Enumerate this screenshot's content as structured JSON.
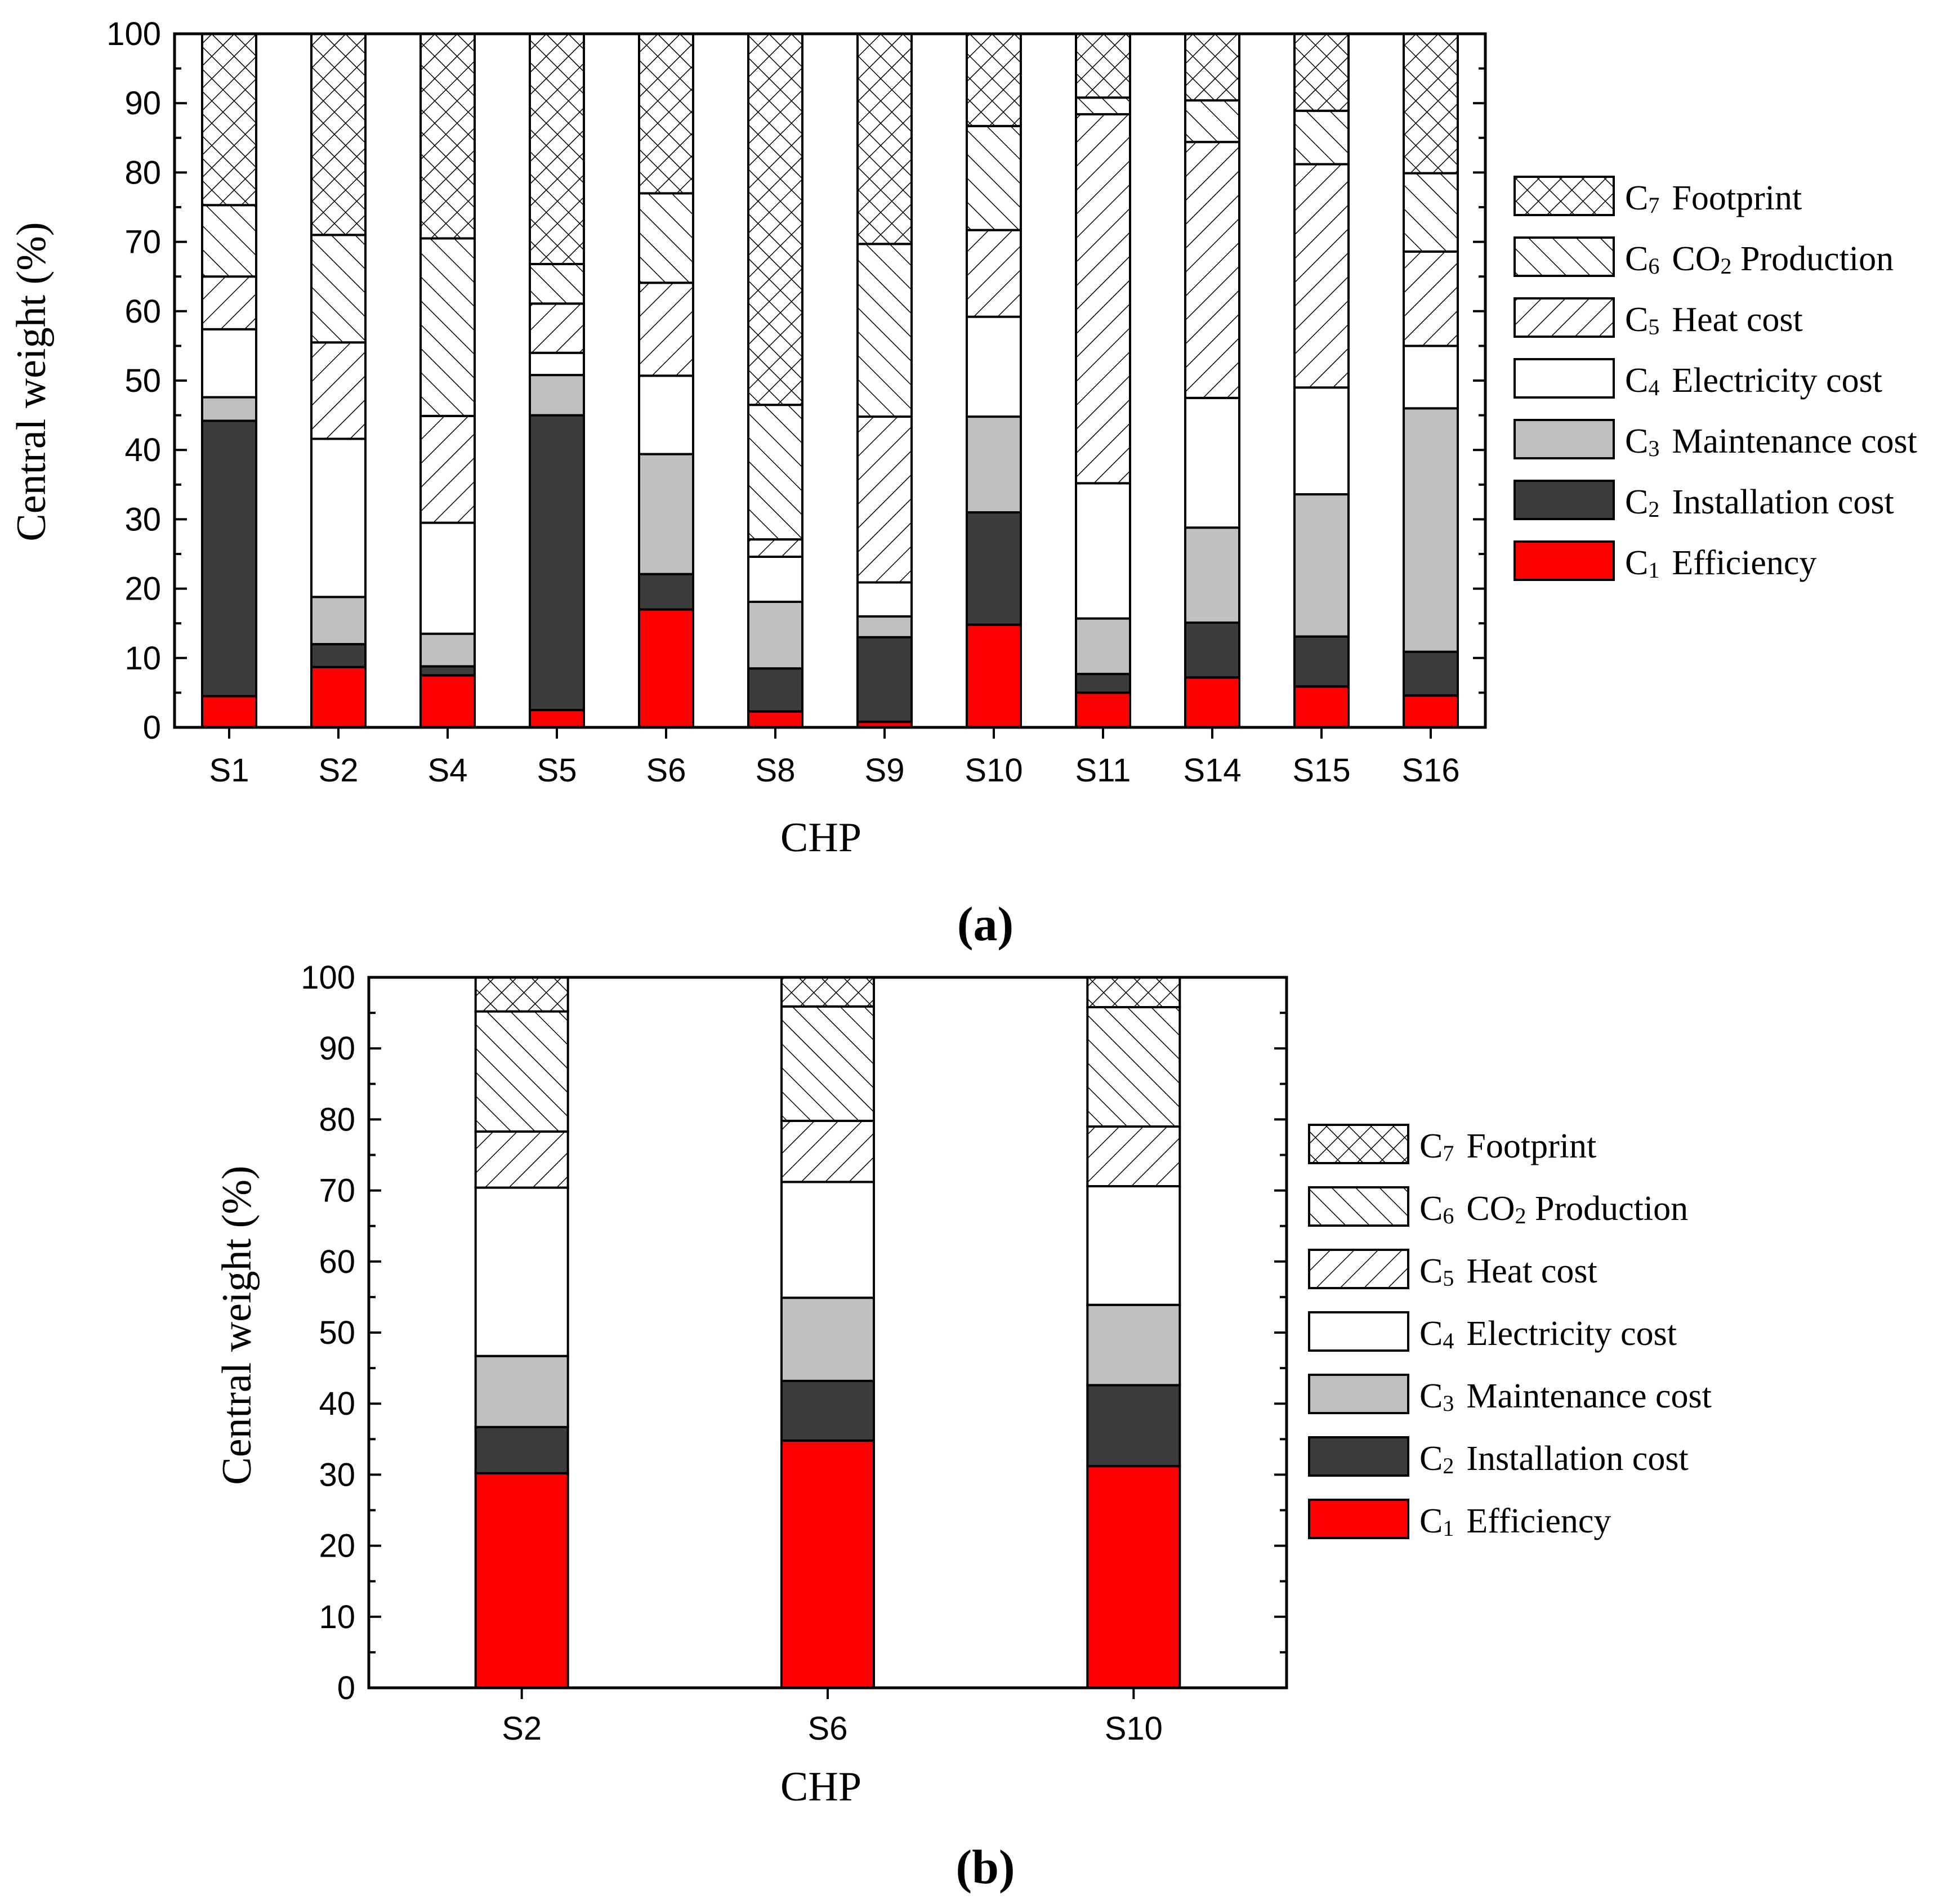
{
  "figure": {
    "panels": [
      {
        "id": "a",
        "label_open": "(",
        "label_letter": "a",
        "label_close": ")"
      },
      {
        "id": "b",
        "label_open": "(",
        "label_letter": "b",
        "label_close": ")"
      }
    ]
  },
  "legend": [
    {
      "key": "C7",
      "letter": "C",
      "sub": "7",
      "name": "Footprint",
      "fill": "crosshatch"
    },
    {
      "key": "C6",
      "letter": "C",
      "sub": "6",
      "name_parts": [
        "CO",
        "2",
        " Production"
      ],
      "fill": "diag-back"
    },
    {
      "key": "C5",
      "letter": "C",
      "sub": "5",
      "name": "Heat cost",
      "fill": "diag-fwd"
    },
    {
      "key": "C4",
      "letter": "C",
      "sub": "4",
      "name": "Electricity cost",
      "fill": "#ffffff"
    },
    {
      "key": "C3",
      "letter": "C",
      "sub": "3",
      "name": "Maintenance cost",
      "fill": "#c0c0c0"
    },
    {
      "key": "C2",
      "letter": "C",
      "sub": "2",
      "name": "Installation cost",
      "fill": "#3c3c3c"
    },
    {
      "key": "C1",
      "letter": "C",
      "sub": "1",
      "name": "Efficiency",
      "fill": "#ff0000"
    }
  ],
  "colors": {
    "efficiency": "#ff0000",
    "installation": "#3c3c3c",
    "maintenance": "#c0c0c0",
    "electricity": "#ffffff",
    "axis": "#000000"
  },
  "chart_data": [
    {
      "type": "bar",
      "stacked": true,
      "panel": "a",
      "title": "",
      "xlabel": "CHP",
      "ylabel": "Central weight (%)",
      "ylim": [
        0,
        100
      ],
      "yticks": [
        0,
        10,
        20,
        30,
        40,
        50,
        60,
        70,
        80,
        90,
        100
      ],
      "categories": [
        "S1",
        "S2",
        "S4",
        "S5",
        "S6",
        "S8",
        "S9",
        "S10",
        "S11",
        "S14",
        "S15",
        "S16"
      ],
      "series": [
        {
          "name": "C1 Efficiency",
          "values": [
            4.5,
            8.7,
            7.5,
            2.5,
            17.0,
            2.3,
            0.8,
            14.8,
            5.0,
            7.2,
            5.9,
            4.6
          ]
        },
        {
          "name": "C2 Installation cost",
          "values": [
            39.7,
            3.3,
            1.3,
            42.5,
            5.1,
            6.2,
            12.2,
            16.2,
            2.7,
            7.9,
            7.2,
            6.3
          ]
        },
        {
          "name": "C3 Maintenance cost",
          "values": [
            3.4,
            6.8,
            4.7,
            5.8,
            17.3,
            9.6,
            3.0,
            13.8,
            8.0,
            13.7,
            20.5,
            35.1
          ]
        },
        {
          "name": "C4 Electricity cost",
          "values": [
            9.8,
            22.8,
            16.0,
            3.2,
            11.3,
            6.5,
            4.9,
            14.4,
            19.5,
            18.7,
            15.4,
            9.0
          ]
        },
        {
          "name": "C5 Heat cost",
          "values": [
            7.6,
            13.9,
            15.4,
            7.1,
            13.4,
            2.5,
            23.9,
            12.5,
            53.2,
            36.9,
            32.2,
            13.6
          ]
        },
        {
          "name": "C6 CO2 Production",
          "values": [
            10.3,
            15.5,
            25.6,
            5.7,
            12.9,
            19.4,
            24.9,
            15.0,
            2.4,
            6.0,
            7.7,
            11.3
          ]
        },
        {
          "name": "C7 Footprint",
          "values": [
            24.7,
            29.0,
            29.5,
            33.2,
            23.0,
            53.5,
            30.3,
            13.3,
            9.2,
            9.6,
            11.1,
            20.1
          ]
        }
      ]
    },
    {
      "type": "bar",
      "stacked": true,
      "panel": "b",
      "title": "",
      "xlabel": "CHP",
      "ylabel": "Central weight (%)",
      "ylim": [
        0,
        100
      ],
      "yticks": [
        0,
        10,
        20,
        30,
        40,
        50,
        60,
        70,
        80,
        90,
        100
      ],
      "categories": [
        "S2",
        "S6",
        "S10"
      ],
      "series": [
        {
          "name": "C1 Efficiency",
          "values": [
            30.2,
            34.8,
            31.2
          ]
        },
        {
          "name": "C2 Installation cost",
          "values": [
            6.5,
            8.4,
            11.4
          ]
        },
        {
          "name": "C3 Maintenance cost",
          "values": [
            10.0,
            11.7,
            11.3
          ]
        },
        {
          "name": "C4 Electricity cost",
          "values": [
            23.7,
            16.3,
            16.7
          ]
        },
        {
          "name": "C5 Heat cost",
          "values": [
            7.9,
            8.6,
            8.4
          ]
        },
        {
          "name": "C6 CO2 Production",
          "values": [
            16.9,
            16.1,
            16.8
          ]
        },
        {
          "name": "C7 Footprint",
          "values": [
            4.8,
            4.1,
            4.2
          ]
        }
      ]
    }
  ]
}
